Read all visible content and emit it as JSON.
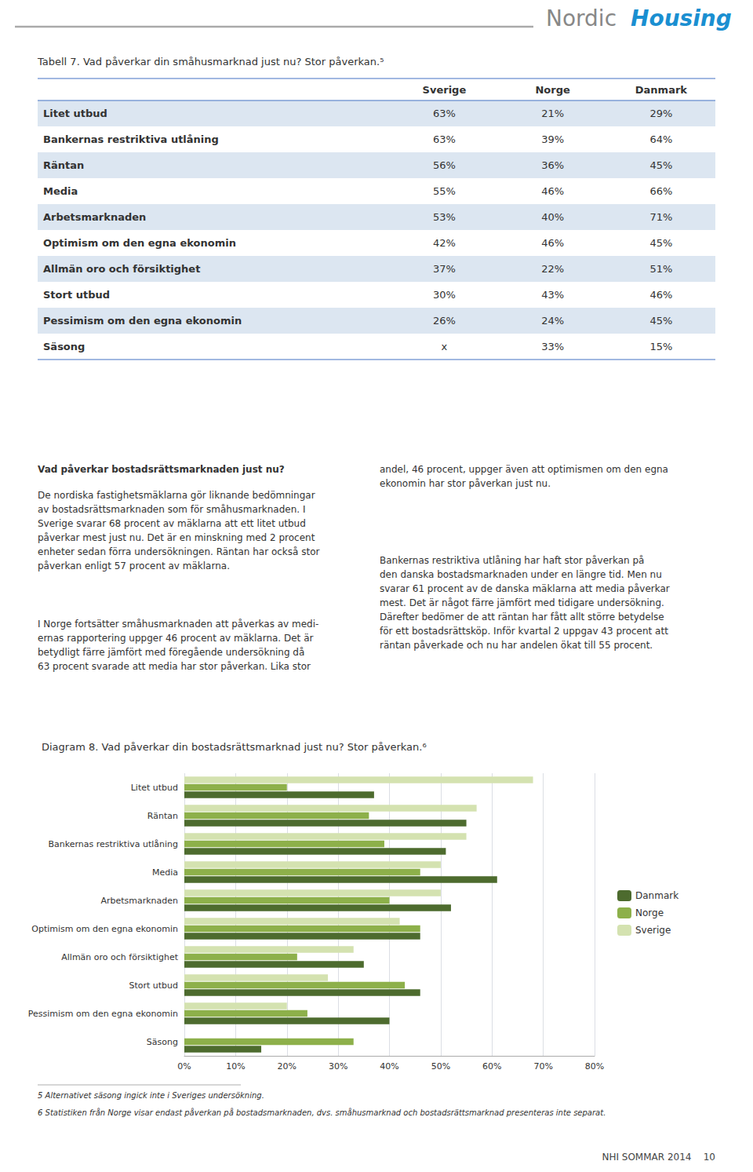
{
  "chart_data": [
    {
      "type": "table",
      "title": "Tabell 7. Vad påverkar din småhusmarknad just nu? Stor påverkan.⁵",
      "categories": [
        "Litet utbud",
        "Bankernas restriktiva utlåning",
        "Räntan",
        "Media",
        "Arbetsmarknaden",
        "Optimism om den egna ekonomin",
        "Allmän oro och försiktighet",
        "Stort utbud",
        "Pessimism om den egna ekonomin",
        "Säsong"
      ],
      "colors": [
        "#dce6f1",
        "#ffffff",
        "#dce6f1",
        "#ffffff",
        "#dce6f1",
        "#ffffff",
        "#dce6f1",
        "#ffffff",
        "#dce6f1",
        "#ffffff"
      ],
      "series": [
        {
          "name": "Sverige",
          "values": [
            63,
            63,
            56,
            55,
            53,
            42,
            37,
            30,
            26,
            null
          ],
          "value_labels": [
            "63%",
            "63%",
            "56%",
            "55%",
            "53%",
            "42%",
            "37%",
            "30%",
            "26%",
            "x"
          ]
        },
        {
          "name": "Norge",
          "values": [
            21,
            39,
            36,
            46,
            40,
            46,
            22,
            43,
            24,
            33
          ],
          "value_labels": [
            "21%",
            "39%",
            "36%",
            "46%",
            "40%",
            "46%",
            "22%",
            "43%",
            "24%",
            "33%"
          ]
        },
        {
          "name": "Danmark",
          "values": [
            29,
            64,
            45,
            66,
            71,
            45,
            51,
            46,
            45,
            15
          ],
          "value_labels": [
            "29%",
            "64%",
            "45%",
            "66%",
            "71%",
            "45%",
            "51%",
            "46%",
            "45%",
            "15%"
          ]
        }
      ]
    },
    {
      "type": "bar",
      "title": "Diagram 8. Vad påverkar din bostadsrättsmarknad just nu? Stor påverkan.⁶",
      "orientation": "horizontal",
      "categories": [
        "Litet utbud",
        "Räntan",
        "Bankernas restriktiva utlåning",
        "Media",
        "Arbetsmarknaden",
        "Optimism om den egna ekonomin",
        "Allmän oro och försiktighet",
        "Stort utbud",
        "Pessimism om den egna ekonomin",
        "Säsong"
      ],
      "series": [
        {
          "name": "Danmark",
          "color": "#4d6b2e",
          "values": [
            0.37,
            0.55,
            0.51,
            0.61,
            0.52,
            0.46,
            0.35,
            0.46,
            0.4,
            0.15
          ]
        },
        {
          "name": "Norge",
          "color": "#8db04a",
          "values": [
            0.2,
            0.36,
            0.39,
            0.46,
            0.4,
            0.46,
            0.22,
            0.43,
            0.24,
            0.33
          ]
        },
        {
          "name": "Sverige",
          "color": "#d4e2b0",
          "values": [
            0.68,
            0.57,
            0.55,
            0.5,
            0.5,
            0.42,
            0.33,
            0.28,
            0.2,
            null
          ]
        }
      ],
      "xlim": [
        0,
        0.8
      ],
      "xticks": [
        {
          "value": 0,
          "label": "0%"
        },
        {
          "value": 0.1,
          "label": "10%"
        },
        {
          "value": 0.2,
          "label": "20%"
        },
        {
          "value": 0.3,
          "label": "30%"
        },
        {
          "value": 0.4,
          "label": "40%"
        },
        {
          "value": 0.5,
          "label": "50%"
        },
        {
          "value": 0.6,
          "label": "60%"
        },
        {
          "value": 0.7,
          "label": "70%"
        },
        {
          "value": 0.8,
          "label": "80%"
        }
      ],
      "grid": true,
      "legend": "right"
    }
  ],
  "annotations": [
    "Nordic",
    "Housing",
    "Vad påverkar bostadsrättsmarknaden just nu?",
    "De nordiska fastighetsmäklarna gör liknande bedömningar\nav bostadsrättsmarknaden som för småhusmarknaden. I\nSverige svarar 68 procent av mäklarna att ett litet utbud\npåverkar mest just nu. Det är en minskning med 2 procent\nenheter sedan förra undersökningen. Räntan har också stor\npåverkan enligt 57 procent av mäklarna.",
    "I Norge fortsätter småhusmarknaden att påverkas av medi-\nernas rapportering uppger 46 procent av mäklarna. Det är\nbetydligt färre jämfört med föregående undersökning då\n63 procent svarade att media har stor påverkan. Lika stor",
    "andel, 46 procent, uppger även att optimismen om den egna\nekonomin har stor påverkan just nu.",
    "Bankernas restriktiva utlåning har haft stor påverkan på\nden danska bostadsmarknaden under en längre tid. Men nu\nsvarar 61 procent av de danska mäklarna att media påverkar\nmest. Det är något färre jämfört med tidigare undersökning.\nDärefter bedömer de att räntan har fått allt större betydelse\nför ett bostadsrättsköp. Inför kvartal 2 uppgav 43 procent att\nräntan påverkade och nu har andelen ökat till 55 procent.",
    "5 Alternativet säsong ingick inte i Sveriges undersökning.",
    "6 Statistiken från Norge visar endast påverkan på bostadsmarknaden, dvs. småhusmarknad och bostadsrättsmarknad presenteras inte separat.",
    "NHI SOMMAR 2014",
    "10"
  ]
}
